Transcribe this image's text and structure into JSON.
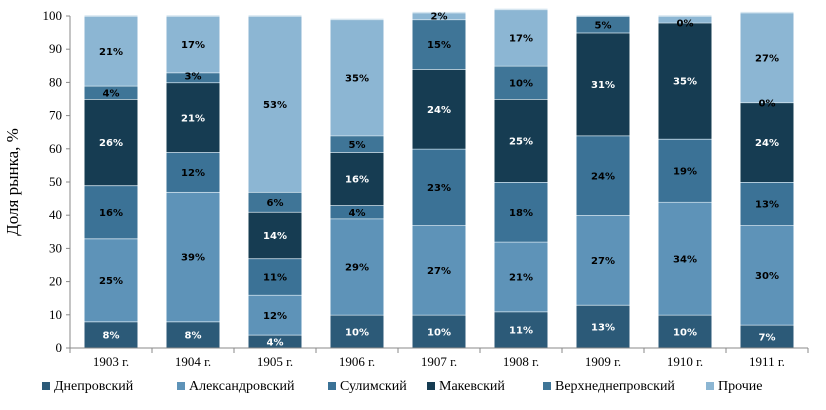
{
  "chart_data": {
    "type": "bar",
    "stacked": true,
    "categories": [
      "1903 г.",
      "1904 г.",
      "1905 г.",
      "1906 г.",
      "1907 г.",
      "1908 г.",
      "1909 г.",
      "1910 г.",
      "1911 г."
    ],
    "ylabel": "Доля рынка, %",
    "ylim": [
      0,
      100
    ],
    "yticks": [
      "0",
      "10",
      "20",
      "30",
      "40",
      "50",
      "60",
      "70",
      "80",
      "90",
      "100"
    ],
    "legend_position": "bottom",
    "series": [
      {
        "name": "Днепровский",
        "color": "#2c5a78",
        "values": [
          8,
          8,
          4,
          10,
          10,
          11,
          13,
          10,
          7
        ],
        "labels": [
          "8%",
          "8%",
          "4%",
          "10%",
          "10%",
          "11%",
          "13%",
          "10%",
          "7%"
        ]
      },
      {
        "name": "Александровский",
        "color": "#5e93b8",
        "values": [
          25,
          39,
          12,
          29,
          27,
          21,
          27,
          34,
          30
        ],
        "labels": [
          "25%",
          "39%",
          "12%",
          "29%",
          "27%",
          "21%",
          "27%",
          "34%",
          "30%"
        ]
      },
      {
        "name": "Сулимский",
        "color": "#3b7296",
        "values": [
          16,
          12,
          11,
          4,
          23,
          18,
          24,
          19,
          13
        ],
        "labels": [
          "16%",
          "12%",
          "11%",
          "4%",
          "23%",
          "18%",
          "24%",
          "19%",
          "13%"
        ]
      },
      {
        "name": "Макевский",
        "color": "#163c52",
        "values": [
          26,
          21,
          14,
          16,
          24,
          25,
          31,
          35,
          24
        ],
        "labels": [
          "26%",
          "21%",
          "14%",
          "16%",
          "24%",
          "25%",
          "31%",
          "35%",
          "24%"
        ]
      },
      {
        "name": "Верхнеднепровский",
        "color": "#3f7597",
        "values": [
          4,
          3,
          6,
          5,
          15,
          10,
          5,
          0,
          0
        ],
        "labels": [
          "4%",
          "3%",
          "6%",
          "5%",
          "15%",
          "10%",
          "5%",
          "0%",
          "0%"
        ]
      },
      {
        "name": "Прочие",
        "color": "#8cb6d3",
        "values": [
          21,
          17,
          53,
          35,
          2,
          17,
          0,
          2,
          27
        ],
        "labels": [
          "21%",
          "17%",
          "53%",
          "35%",
          "2%",
          "17%",
          "",
          "",
          "27%"
        ]
      }
    ]
  }
}
